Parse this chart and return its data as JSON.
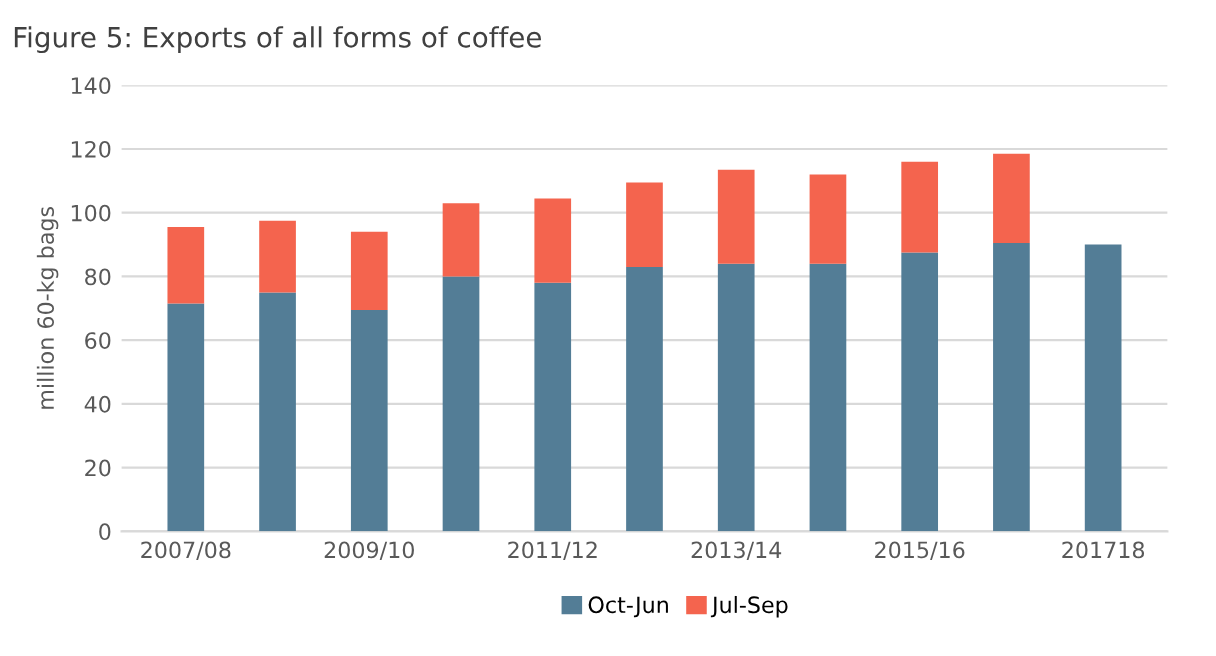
{
  "chart_data": {
    "type": "bar",
    "title": "Figure 5: Exports of all forms of coffee",
    "ylabel": "million 60-kg bags",
    "categories": [
      "2007/08",
      null,
      "2009/10",
      null,
      "2011/12",
      null,
      "2013/14",
      null,
      "2015/16",
      null,
      "201718"
    ],
    "stacked": true,
    "series": [
      {
        "name": "Oct-Jun",
        "color": "#537d96",
        "values": [
          71.5,
          75,
          69.5,
          80,
          78,
          83,
          84,
          84,
          87.5,
          90.5,
          90
        ]
      },
      {
        "name": "Jul-Sep",
        "color": "#f4644e",
        "values": [
          24,
          22.5,
          24.5,
          23,
          26.5,
          26.5,
          29.5,
          28,
          28.5,
          28,
          null
        ]
      }
    ],
    "ylim": [
      0,
      140
    ],
    "yticks": [
      0,
      20,
      40,
      60,
      80,
      100,
      120,
      140
    ],
    "grid": "y",
    "legend": "bottom"
  }
}
